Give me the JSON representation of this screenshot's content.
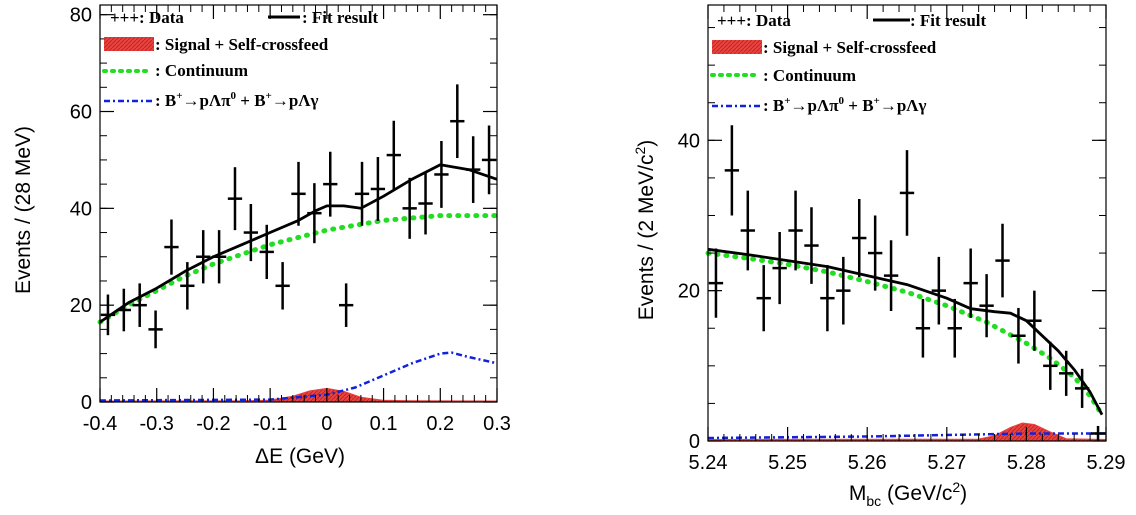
{
  "chart_data": [
    {
      "type": "scatter",
      "xlabel_prefix": "ΔE",
      "xlabel_unit": "(GeV)",
      "ylabel": "Events / (28 MeV)",
      "xlim": [
        -0.4,
        0.3
      ],
      "ylim": [
        0,
        82
      ],
      "xticks": [
        -0.4,
        -0.3,
        -0.2,
        -0.1,
        0,
        0.1,
        0.2,
        0.3
      ],
      "xtick_labels": [
        "-0.4",
        "-0.3",
        "-0.2",
        "-0.1",
        "0",
        "0.1",
        "0.2",
        "0.3"
      ],
      "yticks": [
        0,
        20,
        40,
        60,
        80
      ],
      "ytick_labels": [
        "0",
        "20",
        "40",
        "60",
        "80"
      ],
      "legend": {
        "data": "+++: Data",
        "fit": ": Fit result",
        "signal": ": Signal + Self-crossfeed",
        "continuum": ": Continuum",
        "bkg_prefix": ": B",
        "bkg_mid1": "→p",
        "bkg_lambda": "Λ",
        "bkg_pi": "π",
        "bkg_mid2": " + B",
        "bkg_gamma": "γ",
        "sup_plus": "+",
        "sup_zero": "0"
      },
      "data_points": {
        "x": [
          -0.386,
          -0.358,
          -0.33,
          -0.302,
          -0.274,
          -0.246,
          -0.218,
          -0.19,
          -0.162,
          -0.134,
          -0.106,
          -0.078,
          -0.05,
          -0.022,
          0.006,
          0.034,
          0.062,
          0.09,
          0.118,
          0.146,
          0.174,
          0.202,
          0.23,
          0.258,
          0.286
        ],
        "y": [
          18,
          19,
          20,
          15,
          32,
          24,
          30,
          30,
          42,
          35,
          31,
          24,
          43,
          39,
          45,
          20,
          43,
          44,
          51,
          40,
          41,
          47,
          58,
          48,
          50
        ],
        "err": [
          4.2,
          4.4,
          4.5,
          3.9,
          5.7,
          4.9,
          5.5,
          5.5,
          6.5,
          5.9,
          5.6,
          4.9,
          6.6,
          6.2,
          6.7,
          4.5,
          6.6,
          6.6,
          7.1,
          6.3,
          6.4,
          6.9,
          7.6,
          6.9,
          7.1
        ]
      },
      "fit_curve": {
        "x": [
          -0.4,
          -0.35,
          -0.3,
          -0.25,
          -0.2,
          -0.15,
          -0.1,
          -0.05,
          -0.02,
          0.0,
          0.03,
          0.06,
          0.1,
          0.15,
          0.2,
          0.25,
          0.3
        ],
        "y": [
          16.5,
          20.5,
          23.5,
          27.0,
          30.0,
          32.5,
          35.0,
          37.5,
          39.5,
          40.5,
          40.5,
          40.0,
          42.5,
          46.0,
          49.0,
          48.0,
          46.0
        ]
      },
      "continuum_curve": {
        "x": [
          -0.4,
          -0.35,
          -0.3,
          -0.25,
          -0.2,
          -0.15,
          -0.1,
          -0.05,
          0.0,
          0.05,
          0.1,
          0.15,
          0.2,
          0.25,
          0.3
        ],
        "y": [
          16.5,
          20.0,
          23.0,
          26.0,
          28.5,
          30.5,
          32.5,
          34.0,
          35.5,
          36.5,
          37.5,
          38.0,
          38.5,
          38.5,
          38.5
        ]
      },
      "signal_curve": {
        "x": [
          -0.4,
          -0.15,
          -0.1,
          -0.06,
          -0.03,
          0.0,
          0.03,
          0.06,
          0.1,
          0.15,
          0.3
        ],
        "y": [
          0.2,
          0.25,
          0.4,
          1.2,
          2.3,
          2.8,
          2.2,
          1.0,
          0.35,
          0.25,
          0.2
        ]
      },
      "bkg_curve": {
        "x": [
          -0.4,
          -0.1,
          0.0,
          0.05,
          0.1,
          0.15,
          0.2,
          0.22,
          0.25,
          0.3
        ],
        "y": [
          0.3,
          0.5,
          1.5,
          3.0,
          5.5,
          8.0,
          10.0,
          10.2,
          9.3,
          8.0
        ]
      }
    },
    {
      "type": "scatter",
      "xlabel_main": "M",
      "xlabel_sub": "bc",
      "xlabel_unit": " (GeV/c",
      "xlabel_sup": "2",
      "xlabel_close": ")",
      "ylabel_main": "Events / (2 MeV/c",
      "ylabel_sup": "2",
      "ylabel_close": ")",
      "xlim": [
        5.24,
        5.29
      ],
      "ylim": [
        0,
        58
      ],
      "xticks": [
        5.24,
        5.25,
        5.26,
        5.27,
        5.28,
        5.29
      ],
      "xtick_labels": [
        "5.24",
        "5.25",
        "5.26",
        "5.27",
        "5.28",
        "5.29"
      ],
      "yticks": [
        0,
        20,
        40
      ],
      "ytick_labels": [
        "0",
        "20",
        "40"
      ],
      "legend": {
        "data": "+++: Data",
        "fit": ": Fit result",
        "signal": ": Signal + Self-crossfeed",
        "continuum": ": Continuum",
        "bkg_prefix": ": B",
        "bkg_mid1": "→p",
        "bkg_lambda": "Λ",
        "bkg_pi": "π",
        "bkg_mid2": " + B",
        "bkg_gamma": "γ",
        "sup_plus": "+",
        "sup_zero": "0"
      },
      "data_points": {
        "x": [
          5.241,
          5.243,
          5.245,
          5.247,
          5.249,
          5.251,
          5.253,
          5.255,
          5.257,
          5.259,
          5.261,
          5.263,
          5.265,
          5.267,
          5.269,
          5.271,
          5.273,
          5.275,
          5.277,
          5.279,
          5.281,
          5.283,
          5.285,
          5.287,
          5.289
        ],
        "y": [
          21,
          36,
          28,
          19,
          23,
          28,
          26,
          19,
          20,
          27,
          25,
          22,
          33,
          15,
          20,
          15,
          21,
          18,
          24,
          14,
          16,
          10,
          9,
          7,
          1
        ],
        "err": [
          4.6,
          6.0,
          5.3,
          4.4,
          4.8,
          5.3,
          5.1,
          4.4,
          4.5,
          5.2,
          5.0,
          4.7,
          5.7,
          3.9,
          4.5,
          3.9,
          4.6,
          4.2,
          4.9,
          3.7,
          4.0,
          3.2,
          3.0,
          2.6,
          1.0
        ]
      },
      "fit_curve": {
        "x": [
          5.24,
          5.245,
          5.25,
          5.255,
          5.26,
          5.265,
          5.27,
          5.273,
          5.276,
          5.278,
          5.28,
          5.282,
          5.284,
          5.286,
          5.288,
          5.2895
        ],
        "y": [
          25.5,
          24.8,
          24.0,
          23.2,
          22.0,
          20.8,
          19.0,
          17.6,
          17.2,
          17.0,
          16.0,
          14.0,
          12.0,
          9.5,
          6.5,
          3.5
        ]
      },
      "continuum_curve": {
        "x": [
          5.24,
          5.245,
          5.25,
          5.255,
          5.26,
          5.265,
          5.27,
          5.275,
          5.28,
          5.283,
          5.286,
          5.288,
          5.2895
        ],
        "y": [
          25.0,
          24.3,
          23.5,
          22.5,
          21.2,
          19.8,
          18.0,
          15.8,
          13.0,
          11.0,
          8.5,
          6.0,
          3.5
        ]
      },
      "signal_curve": {
        "x": [
          5.24,
          5.274,
          5.276,
          5.278,
          5.2795,
          5.281,
          5.283,
          5.285,
          5.29
        ],
        "y": [
          0.2,
          0.25,
          0.7,
          1.8,
          2.4,
          2.2,
          1.2,
          0.3,
          0.2
        ]
      },
      "bkg_curve": {
        "x": [
          5.24,
          5.26,
          5.27,
          5.28,
          5.29
        ],
        "y": [
          0.4,
          0.6,
          0.8,
          1.0,
          1.0
        ]
      }
    }
  ]
}
